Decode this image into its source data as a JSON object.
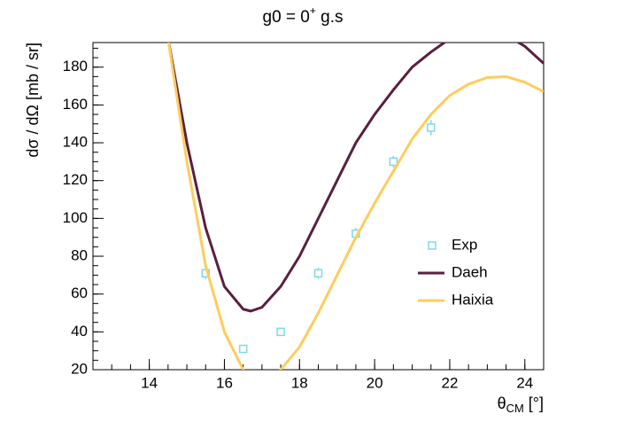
{
  "chart_data": {
    "type": "line",
    "title": {
      "main": "g0 = 0",
      "sup": "+",
      "rest": " g.s"
    },
    "x_label": {
      "main": "θ",
      "sub": "CM",
      "rest": " [°]"
    },
    "y_label": "dσ / dΩ [mb / sr]",
    "xlim": [
      12.5,
      24.5
    ],
    "ylim": [
      20,
      193
    ],
    "xticks": [
      14,
      16,
      18,
      20,
      22,
      24
    ],
    "yticks": [
      20,
      40,
      60,
      80,
      100,
      120,
      140,
      160,
      180
    ],
    "legend": "right",
    "series": [
      {
        "name": "Exp",
        "color": "#7fd8e8",
        "marker": "open-square",
        "x": [
          15.5,
          16.5,
          17.5,
          18.5,
          19.5,
          20.5,
          21.5
        ],
        "values": [
          71,
          31,
          40,
          71,
          92,
          130,
          148
        ],
        "errors": [
          3,
          2,
          2,
          3,
          3,
          3,
          4
        ]
      },
      {
        "name": "Daeh",
        "color": "#5a1f3f",
        "x": [
          14.5,
          15,
          15.5,
          16,
          16.5,
          16.7,
          17,
          17.5,
          18,
          18.5,
          19,
          19.5,
          20,
          20.5,
          21,
          21.5,
          22,
          22.5,
          23,
          23.5,
          24,
          24.5
        ],
        "values": [
          195,
          140,
          95,
          64,
          52,
          51,
          53,
          64,
          80,
          100,
          120,
          140,
          155,
          168,
          180,
          188,
          195,
          200,
          201,
          197,
          191,
          182
        ]
      },
      {
        "name": "Haixia",
        "color": "#ffcc5c",
        "x": [
          14.5,
          15,
          15.5,
          16,
          16.5,
          17,
          17.5,
          18,
          18.5,
          19,
          19.5,
          20,
          20.5,
          21,
          21.5,
          22,
          22.5,
          23,
          23.5,
          24,
          24.5
        ],
        "values": [
          195,
          130,
          75,
          40,
          20,
          5,
          20,
          32,
          50,
          70,
          90,
          108,
          125,
          142,
          155,
          165,
          171,
          174.5,
          175,
          172,
          167
        ]
      }
    ]
  }
}
